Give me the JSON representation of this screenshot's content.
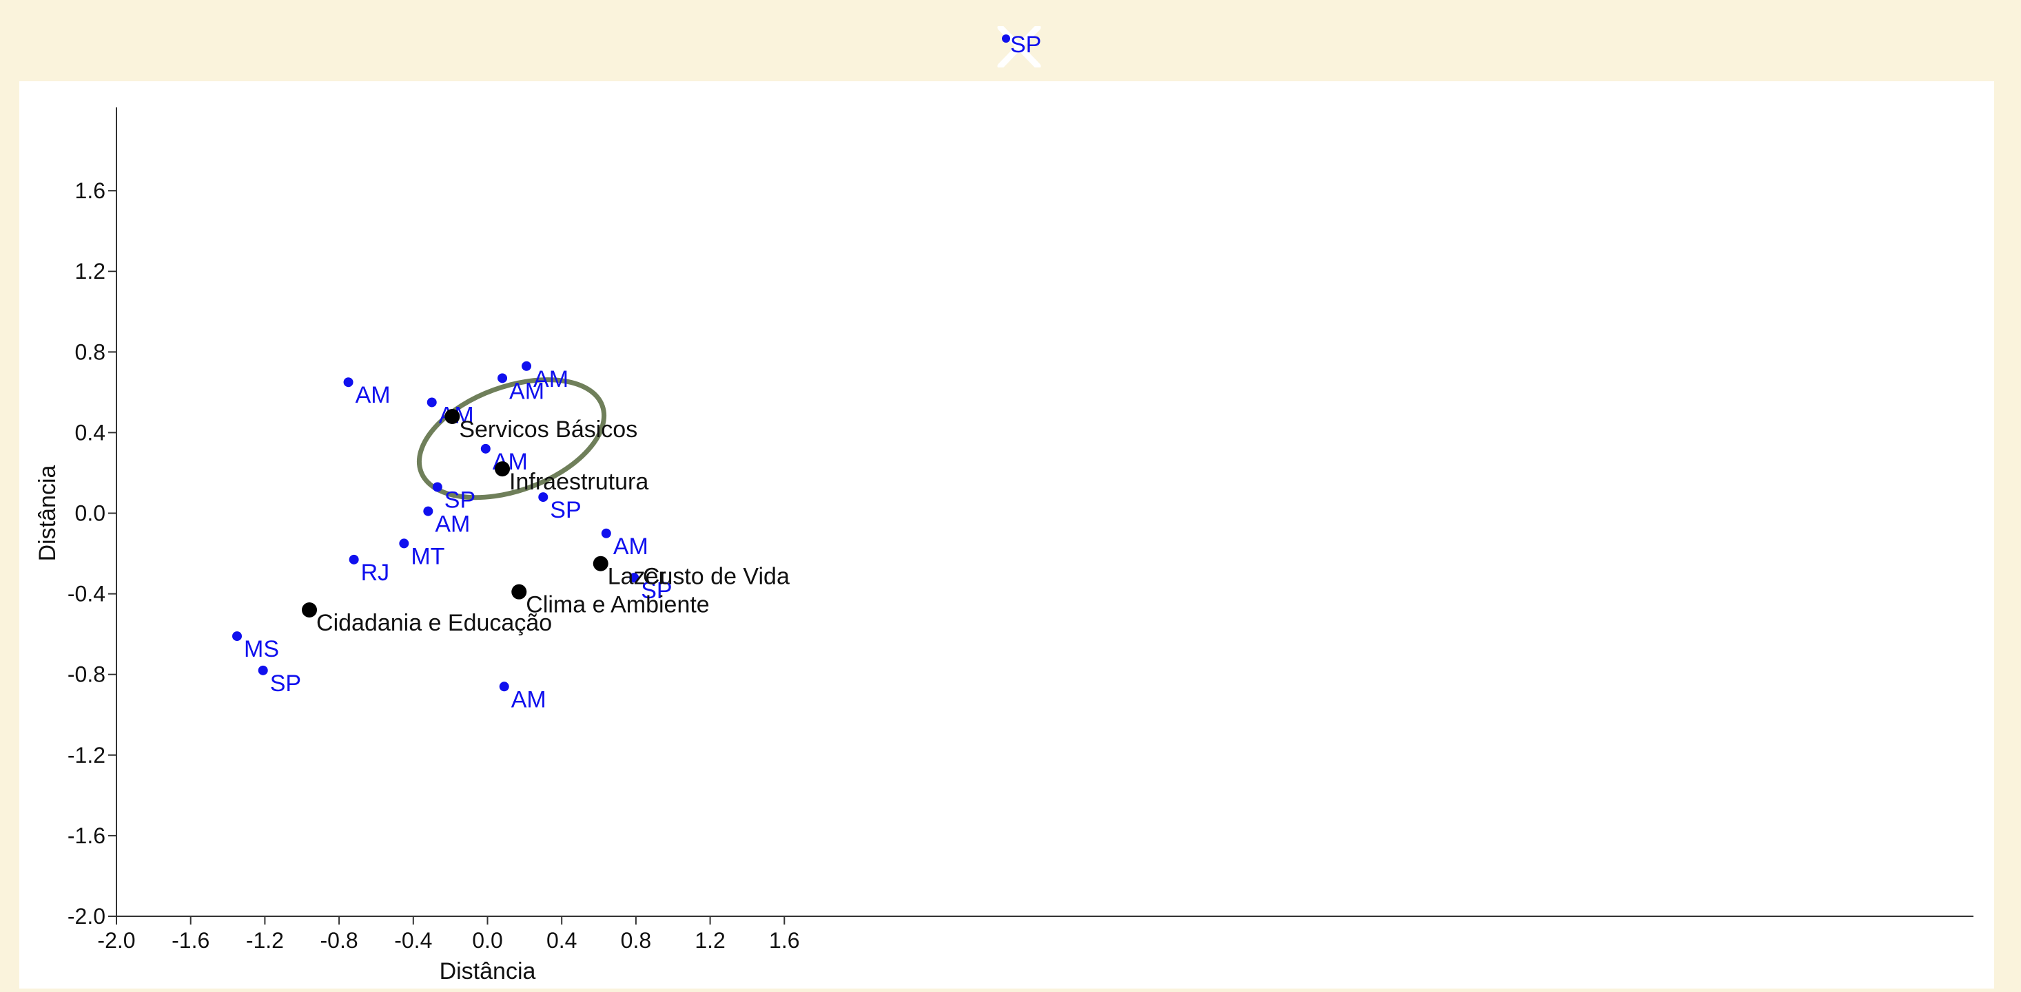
{
  "chart_data": {
    "type": "scatter",
    "xlabel": "Distância",
    "ylabel": "Distância",
    "xlim": [
      -2.0,
      2.0
    ],
    "ylim": [
      -2.0,
      2.0
    ],
    "x_ticks": [
      "-2.0",
      "-1.6",
      "-1.2",
      "-0.8",
      "-0.4",
      "0.0",
      "0.4",
      "0.8",
      "1.2",
      "1.6"
    ],
    "y_ticks": [
      "1.6",
      "1.2",
      "0.8",
      "0.4",
      "0.0",
      "-0.4",
      "-0.8",
      "-1.2",
      "-1.6",
      "-2.0"
    ],
    "grid": false,
    "colors": {
      "object_points": "#1010ee",
      "category_points": "#000000",
      "ellipse": "#6f7f5a",
      "background": "#faf3dc",
      "panel": "#ffffff"
    },
    "series": [
      {
        "points": [
          {
            "label": "AM",
            "x": -0.75,
            "y": 0.65
          },
          {
            "label": "AM",
            "x": -0.3,
            "y": 0.55
          },
          {
            "label": "AM",
            "x": 0.08,
            "y": 0.67
          },
          {
            "label": "AM",
            "x": 0.21,
            "y": 0.73
          },
          {
            "label": "AM",
            "x": -0.01,
            "y": 0.32
          },
          {
            "label": "SP",
            "x": -0.27,
            "y": 0.13
          },
          {
            "label": "AM",
            "x": -0.32,
            "y": 0.01
          },
          {
            "label": "SP",
            "x": 0.3,
            "y": 0.08
          },
          {
            "label": "MT",
            "x": -0.45,
            "y": -0.15
          },
          {
            "label": "RJ",
            "x": -0.72,
            "y": -0.23
          },
          {
            "label": "AM",
            "x": 0.64,
            "y": -0.1
          },
          {
            "label": "SP",
            "x": 0.79,
            "y": -0.32
          },
          {
            "label": "MS",
            "x": -1.35,
            "y": -0.61
          },
          {
            "label": "SP",
            "x": -1.21,
            "y": -0.78
          },
          {
            "label": "AM",
            "x": 0.09,
            "y": -0.86
          }
        ]
      },
      {
        "points": [
          {
            "label": "Servicos Básicos",
            "x": -0.19,
            "y": 0.48
          },
          {
            "label": "Infraestrutura",
            "x": 0.08,
            "y": 0.22
          },
          {
            "label": "Lazer",
            "x": 0.61,
            "y": -0.25
          },
          {
            "label": "Custo de Vida",
            "x": 0.8,
            "y": -0.25
          },
          {
            "label": "Clima e Ambiente",
            "x": 0.17,
            "y": -0.39
          },
          {
            "label": "Cidadania e Educação",
            "x": -0.96,
            "y": -0.48
          }
        ]
      }
    ],
    "outside_point": {
      "label": "SP"
    },
    "ellipse": {
      "cx": 0.13,
      "cy": 0.37,
      "rx": 0.52,
      "ry": 0.28,
      "angle_deg": -20
    }
  }
}
